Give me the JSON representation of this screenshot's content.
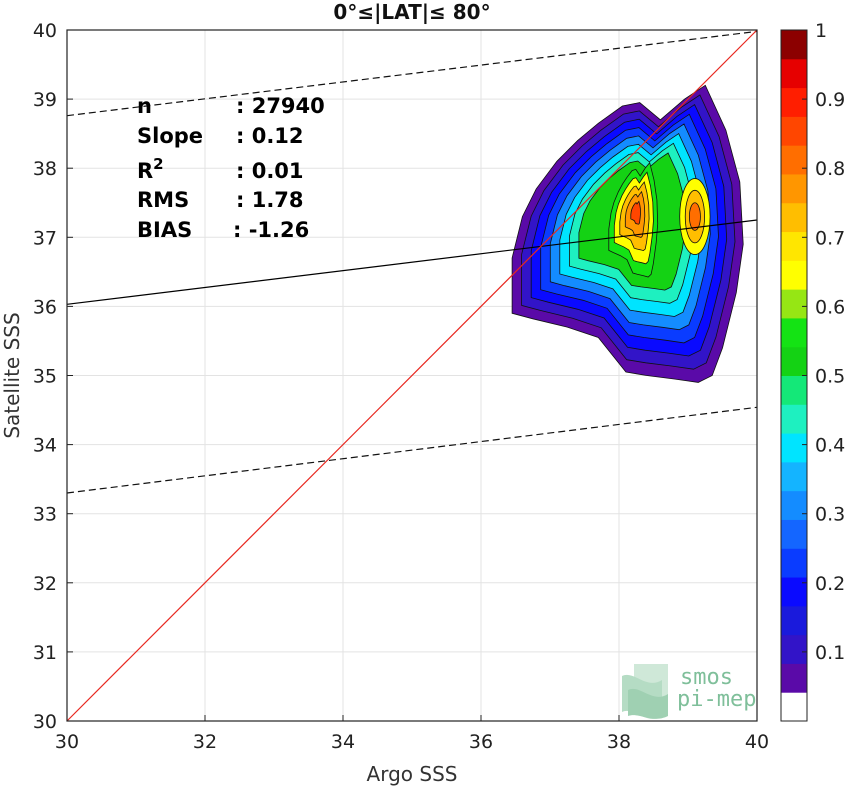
{
  "chart_data": {
    "type": "heatmap",
    "title": "0°≤|LAT|≤ 80°",
    "xlabel": "Argo SSS",
    "ylabel": "Satellite SSS",
    "xlim": [
      30,
      40
    ],
    "ylim": [
      30,
      40
    ],
    "xticks": [
      "30",
      "32",
      "34",
      "36",
      "38",
      "40"
    ],
    "yticks": [
      "30",
      "31",
      "32",
      "33",
      "34",
      "35",
      "36",
      "37",
      "38",
      "39",
      "40"
    ],
    "grid": true,
    "stats": [
      {
        "label": "n",
        "value": ": 27940"
      },
      {
        "label": "Slope",
        "value": ": 0.12"
      },
      {
        "label": "R",
        "sup": "2",
        "value": ": 0.01"
      },
      {
        "label": "RMS",
        "value": ": 1.78"
      },
      {
        "label": "BIAS",
        "value": ": -1.26"
      }
    ],
    "identity_line": {
      "from": [
        30,
        30
      ],
      "to": [
        40,
        40
      ],
      "color": "#e8271f"
    },
    "fit_line": {
      "from": [
        30,
        36.03
      ],
      "to": [
        40,
        37.25
      ],
      "color": "#000000"
    },
    "dashed_upper": {
      "from": [
        30,
        38.76
      ],
      "to": [
        40,
        39.98
      ]
    },
    "dashed_lower": {
      "from": [
        30,
        33.3
      ],
      "to": [
        40,
        34.54
      ]
    },
    "density_center": {
      "x": 38.15,
      "y": 37.4
    },
    "secondary_peak": {
      "x": 39.1,
      "y": 37.3
    },
    "colorbar": {
      "min": 0,
      "max": 1,
      "ticks": [
        "0.1",
        "0.2",
        "0.3",
        "0.4",
        "0.5",
        "0.6",
        "0.7",
        "0.8",
        "0.9",
        "1"
      ],
      "tick_values": [
        0.1,
        0.2,
        0.3,
        0.4,
        0.5,
        0.6,
        0.7,
        0.8,
        0.9,
        1.0
      ],
      "colors": [
        "#ffffff",
        "#5a0aa8",
        "#3214c8",
        "#1a1adc",
        "#0a0aff",
        "#0a3cff",
        "#1466ff",
        "#148cff",
        "#14b4ff",
        "#00e4ff",
        "#1ef0c0",
        "#14e878",
        "#14d214",
        "#14e314",
        "#96e614",
        "#ffff00",
        "#ffe600",
        "#ffbe00",
        "#ff9600",
        "#ff6e00",
        "#ff4600",
        "#ff1e00",
        "#e60000",
        "#8c0000"
      ]
    }
  },
  "logo": {
    "line1": "smos",
    "line2": "pi-mep"
  }
}
